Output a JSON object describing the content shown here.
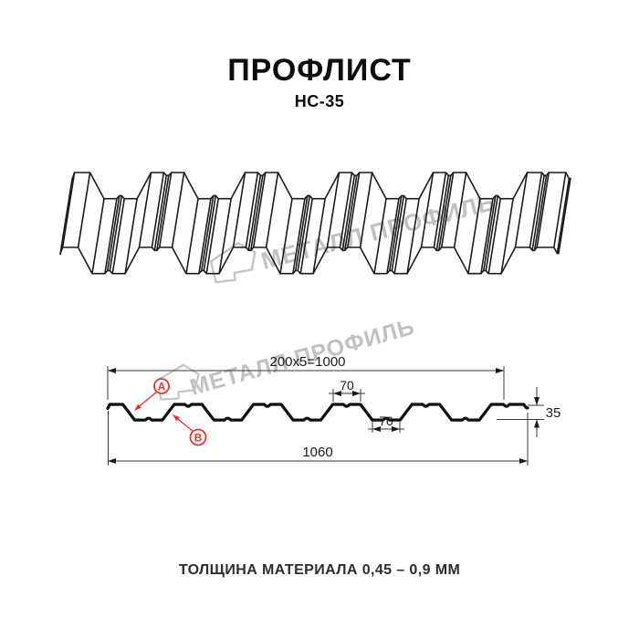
{
  "header": {
    "title": "ПРОФЛИСТ",
    "subtitle": "НС-35"
  },
  "footer": {
    "text": "ТОЛЩИНА МАТЕРИАЛА 0,45 – 0,9 ММ"
  },
  "watermark": {
    "brand": "МЕТАЛЛ ПРОФИЛЬ"
  },
  "dimensions": {
    "module": "200x5=1000",
    "top_flange": "70",
    "bottom_flange": "70",
    "overall_width": "1060",
    "height": "35"
  },
  "labels": {
    "a": "A",
    "b": "B"
  },
  "colors": {
    "line": "#1b1b1b",
    "red": "#e8352b",
    "watermark": "#c6c5c4"
  },
  "profile": {
    "name": "НС-35",
    "height_mm": 35,
    "pitch_mm": 200,
    "modules": 5,
    "flange_mm": 70,
    "useful_width_mm": 1000,
    "total_width_mm": 1060,
    "thickness_range_mm": "0,45 – 0,9"
  }
}
